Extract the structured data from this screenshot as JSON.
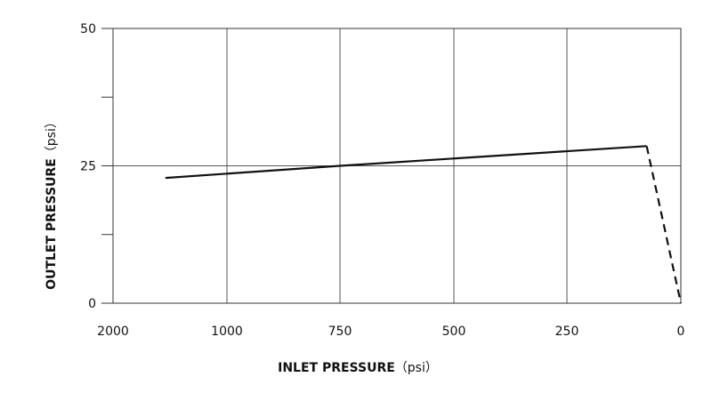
{
  "chart_data": {
    "type": "line",
    "title": "",
    "xlabel": {
      "main": "INLET PRESSURE",
      "unit": "（psi）"
    },
    "ylabel": {
      "main": "OUTLET PRESSURE",
      "unit": "（psi）"
    },
    "x_ticks": [
      {
        "value": 2000,
        "label": "2000"
      },
      {
        "value": 1000,
        "label": "1000"
      },
      {
        "value": 750,
        "label": "750"
      },
      {
        "value": 500,
        "label": "500"
      },
      {
        "value": 250,
        "label": "250"
      },
      {
        "value": 0,
        "label": "0"
      }
    ],
    "y_ticks": [
      {
        "value": 0,
        "label": "0"
      },
      {
        "value": 25,
        "label": "25"
      },
      {
        "value": 50,
        "label": "50"
      }
    ],
    "y_minor_ticks": [
      12.5,
      37.5
    ],
    "ylim": [
      0,
      50
    ],
    "grid": true,
    "legend": "none",
    "series": [
      {
        "style": "solid",
        "points": [
          {
            "x": 1540,
            "y": 22.8
          },
          {
            "x": 750,
            "y": 25.0
          },
          {
            "x": 75,
            "y": 28.6
          }
        ]
      },
      {
        "style": "dashed",
        "points": [
          {
            "x": 75,
            "y": 28.6
          },
          {
            "x": 0,
            "y": 0
          }
        ]
      }
    ]
  }
}
